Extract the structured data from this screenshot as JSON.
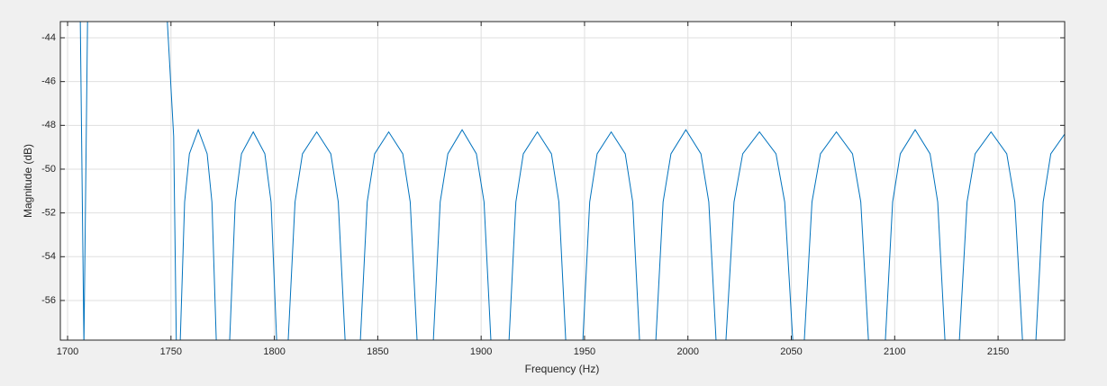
{
  "chart_data": {
    "type": "line",
    "xlabel": "Frequency (Hz)",
    "ylabel": "Magnitude (dB)",
    "xlim": [
      1696.5,
      2182.2
    ],
    "ylim": [
      -57.81,
      -43.26
    ],
    "xticks": [
      1700,
      1750,
      1800,
      1850,
      1900,
      1950,
      2000,
      2050,
      2100,
      2150
    ],
    "yticks": [
      -56,
      -54,
      -52,
      -50,
      -48,
      -46,
      -44
    ],
    "grid": true,
    "box": true,
    "series": [
      {
        "color": "#0072bd",
        "x": [
          1706.0,
          1707.9,
          1709.8,
          1728.0,
          1747.5,
          1751.3,
          1752.6,
          1753.5,
          1754.5,
          1756.6,
          1758.9,
          1763.2,
          1767.5,
          1769.8,
          1771.9,
          1775.0,
          1778.4,
          1781.1,
          1784.1,
          1789.8,
          1795.4,
          1798.4,
          1801.1,
          1804.0,
          1806.7,
          1810.0,
          1813.6,
          1820.5,
          1827.3,
          1830.9,
          1834.2,
          1838.0,
          1841.6,
          1844.9,
          1848.5,
          1855.3,
          1862.1,
          1865.7,
          1869.0,
          1873.0,
          1876.9,
          1880.2,
          1883.9,
          1890.8,
          1897.7,
          1901.4,
          1904.7,
          1909.0,
          1913.5,
          1916.8,
          1920.4,
          1927.2,
          1934.0,
          1937.6,
          1940.9,
          1945.0,
          1949.2,
          1952.5,
          1956.1,
          1962.9,
          1969.7,
          1973.3,
          1976.6,
          1980.5,
          1984.5,
          1988.0,
          1991.8,
          1999.0,
          2006.3,
          2010.1,
          2013.6,
          2016.0,
          2018.4,
          2022.3,
          2026.5,
          2034.6,
          2042.6,
          2046.8,
          2050.7,
          2053.5,
          2056.3,
          2060.0,
          2064.1,
          2071.8,
          2079.6,
          2083.6,
          2087.3,
          2091.4,
          2095.5,
          2099.0,
          2102.7,
          2109.9,
          2117.1,
          2120.8,
          2124.3,
          2127.8,
          2131.3,
          2135.0,
          2138.9,
          2146.6,
          2154.2,
          2158.1,
          2161.8,
          2165.0,
          2168.3,
          2171.8,
          2175.5,
          2182.2
        ],
        "values": [
          -42.0,
          -58.0,
          -42.0,
          null,
          -42.0,
          -48.5,
          -58.0,
          null,
          -57.8,
          -51.5,
          -49.3,
          -48.2,
          -49.3,
          -51.5,
          -57.8,
          null,
          -57.8,
          -51.5,
          -49.3,
          -48.3,
          -49.3,
          -51.5,
          -57.8,
          null,
          -57.8,
          -51.5,
          -49.3,
          -48.3,
          -49.3,
          -51.5,
          -57.8,
          null,
          -57.8,
          -51.5,
          -49.3,
          -48.3,
          -49.3,
          -51.5,
          -57.8,
          null,
          -57.8,
          -51.5,
          -49.3,
          -48.2,
          -49.3,
          -51.5,
          -57.8,
          null,
          -57.8,
          -51.5,
          -49.3,
          -48.3,
          -49.3,
          -51.5,
          -57.8,
          null,
          -57.8,
          -51.5,
          -49.3,
          -48.3,
          -49.3,
          -51.5,
          -57.8,
          null,
          -57.8,
          -51.5,
          -49.3,
          -48.2,
          -49.3,
          -51.5,
          -57.8,
          null,
          -57.8,
          -51.5,
          -49.3,
          -48.3,
          -49.3,
          -51.5,
          -57.8,
          null,
          -57.8,
          -51.5,
          -49.3,
          -48.3,
          -49.3,
          -51.5,
          -57.8,
          null,
          -57.8,
          -51.5,
          -49.3,
          -48.2,
          -49.3,
          -51.5,
          -57.8,
          null,
          -57.8,
          -51.5,
          -49.3,
          -48.3,
          -49.3,
          -51.5,
          -57.8,
          null,
          -57.8,
          -51.5,
          -49.3,
          -48.4
        ]
      }
    ]
  }
}
